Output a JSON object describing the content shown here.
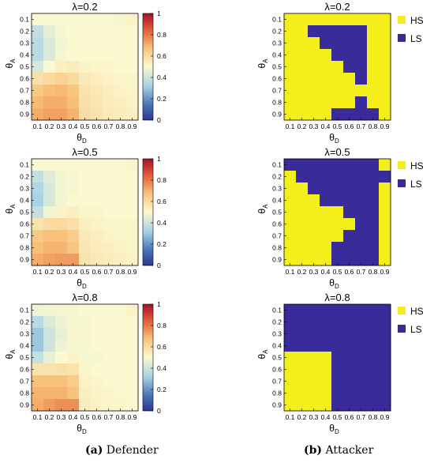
{
  "captions": [
    {
      "letter": "(a)",
      "text": "Defender"
    },
    {
      "letter": "(b)",
      "text": "Attacker"
    }
  ],
  "colorbar": {
    "ticks": [
      "0",
      "0.2",
      "0.4",
      "0.6",
      "0.8",
      "1"
    ],
    "range": [
      0,
      1
    ]
  },
  "legend": {
    "hs": "HS",
    "ls": "LS",
    "hs_color": "#f4ef1a",
    "ls_color": "#3a2b9b"
  },
  "colors": {
    "hs": "#f4ef1a",
    "ls": "#3a2b9b"
  },
  "chart_data": [
    {
      "type": "heatmap",
      "title": "λ=0.2",
      "xlabel": "θD",
      "ylabel": "θA",
      "x": [
        "0.1",
        "0.2",
        "0.3",
        "0.4",
        "0.5",
        "0.6",
        "0.7",
        "0.8",
        "0.9"
      ],
      "y": [
        "0.1",
        "0.2",
        "0.3",
        "0.4",
        "0.5",
        "0.6",
        "0.7",
        "0.8",
        "0.9"
      ],
      "values": [
        [
          0.5,
          0.5,
          0.5,
          0.5,
          0.5,
          0.5,
          0.5,
          0.49,
          0.52
        ],
        [
          0.38,
          0.45,
          0.49,
          0.5,
          0.5,
          0.5,
          0.5,
          0.5,
          0.5
        ],
        [
          0.36,
          0.43,
          0.48,
          0.5,
          0.5,
          0.5,
          0.5,
          0.5,
          0.5
        ],
        [
          0.36,
          0.43,
          0.49,
          0.5,
          0.5,
          0.5,
          0.5,
          0.5,
          0.5
        ],
        [
          0.42,
          0.5,
          0.53,
          0.54,
          0.52,
          0.51,
          0.51,
          0.5,
          0.5
        ],
        [
          0.58,
          0.6,
          0.62,
          0.6,
          0.55,
          0.53,
          0.52,
          0.51,
          0.51
        ],
        [
          0.65,
          0.68,
          0.69,
          0.66,
          0.57,
          0.55,
          0.53,
          0.52,
          0.51
        ],
        [
          0.69,
          0.71,
          0.71,
          0.68,
          0.58,
          0.56,
          0.54,
          0.53,
          0.52
        ],
        [
          0.71,
          0.73,
          0.73,
          0.7,
          0.59,
          0.57,
          0.55,
          0.54,
          0.53
        ]
      ],
      "colorbar": [
        0,
        1
      ]
    },
    {
      "type": "heatmap",
      "title": "λ=0.2",
      "xlabel": "θD",
      "ylabel": "θA",
      "x": [
        "0.1",
        "0.2",
        "0.3",
        "0.4",
        "0.5",
        "0.6",
        "0.7",
        "0.8",
        "0.9"
      ],
      "y": [
        "0.1",
        "0.2",
        "0.3",
        "0.4",
        "0.5",
        "0.6",
        "0.7",
        "0.8",
        "0.9"
      ],
      "legend": [
        "HS",
        "LS"
      ],
      "values": [
        [
          "HS",
          "HS",
          "HS",
          "HS",
          "HS",
          "HS",
          "HS",
          "HS",
          "HS"
        ],
        [
          "HS",
          "HS",
          "LS",
          "LS",
          "LS",
          "LS",
          "LS",
          "HS",
          "HS"
        ],
        [
          "HS",
          "HS",
          "HS",
          "LS",
          "LS",
          "LS",
          "LS",
          "HS",
          "HS"
        ],
        [
          "HS",
          "HS",
          "HS",
          "HS",
          "LS",
          "LS",
          "LS",
          "HS",
          "HS"
        ],
        [
          "HS",
          "HS",
          "HS",
          "HS",
          "HS",
          "LS",
          "LS",
          "HS",
          "HS"
        ],
        [
          "HS",
          "HS",
          "HS",
          "HS",
          "HS",
          "HS",
          "LS",
          "HS",
          "HS"
        ],
        [
          "HS",
          "HS",
          "HS",
          "HS",
          "HS",
          "HS",
          "HS",
          "HS",
          "HS"
        ],
        [
          "HS",
          "HS",
          "HS",
          "HS",
          "HS",
          "HS",
          "LS",
          "HS",
          "HS"
        ],
        [
          "HS",
          "HS",
          "HS",
          "HS",
          "LS",
          "LS",
          "LS",
          "LS",
          "HS"
        ]
      ]
    },
    {
      "type": "heatmap",
      "title": "λ=0.5",
      "xlabel": "θD",
      "ylabel": "θA",
      "x": [
        "0.1",
        "0.2",
        "0.3",
        "0.4",
        "0.5",
        "0.6",
        "0.7",
        "0.8",
        "0.9"
      ],
      "y": [
        "0.1",
        "0.2",
        "0.3",
        "0.4",
        "0.5",
        "0.6",
        "0.7",
        "0.8",
        "0.9"
      ],
      "values": [
        [
          0.5,
          0.5,
          0.5,
          0.5,
          0.5,
          0.5,
          0.5,
          0.5,
          0.51
        ],
        [
          0.38,
          0.44,
          0.48,
          0.49,
          0.5,
          0.5,
          0.5,
          0.5,
          0.5
        ],
        [
          0.34,
          0.42,
          0.48,
          0.49,
          0.5,
          0.5,
          0.5,
          0.5,
          0.5
        ],
        [
          0.32,
          0.42,
          0.48,
          0.5,
          0.5,
          0.5,
          0.5,
          0.5,
          0.5
        ],
        [
          0.38,
          0.48,
          0.52,
          0.53,
          0.51,
          0.51,
          0.5,
          0.5,
          0.5
        ],
        [
          0.57,
          0.59,
          0.6,
          0.58,
          0.53,
          0.52,
          0.51,
          0.51,
          0.51
        ],
        [
          0.65,
          0.67,
          0.67,
          0.64,
          0.55,
          0.53,
          0.52,
          0.51,
          0.51
        ],
        [
          0.68,
          0.7,
          0.7,
          0.66,
          0.56,
          0.54,
          0.53,
          0.52,
          0.51
        ],
        [
          0.71,
          0.73,
          0.74,
          0.74,
          0.57,
          0.55,
          0.54,
          0.53,
          0.52
        ]
      ],
      "colorbar": [
        0,
        1
      ]
    },
    {
      "type": "heatmap",
      "title": "λ=0.5",
      "xlabel": "θD",
      "ylabel": "θA",
      "x": [
        "0.1",
        "0.2",
        "0.3",
        "0.4",
        "0.5",
        "0.6",
        "0.7",
        "0.8",
        "0.9"
      ],
      "y": [
        "0.1",
        "0.2",
        "0.3",
        "0.4",
        "0.5",
        "0.6",
        "0.7",
        "0.8",
        "0.9"
      ],
      "legend": [
        "HS",
        "LS"
      ],
      "values": [
        [
          "LS",
          "LS",
          "LS",
          "LS",
          "LS",
          "LS",
          "LS",
          "LS",
          "HS"
        ],
        [
          "HS",
          "LS",
          "LS",
          "LS",
          "LS",
          "LS",
          "LS",
          "LS",
          "LS"
        ],
        [
          "HS",
          "HS",
          "LS",
          "LS",
          "LS",
          "LS",
          "LS",
          "LS",
          "HS"
        ],
        [
          "HS",
          "HS",
          "HS",
          "LS",
          "LS",
          "LS",
          "LS",
          "LS",
          "HS"
        ],
        [
          "HS",
          "HS",
          "HS",
          "HS",
          "HS",
          "LS",
          "LS",
          "LS",
          "HS"
        ],
        [
          "HS",
          "HS",
          "HS",
          "HS",
          "HS",
          "HS",
          "LS",
          "LS",
          "HS"
        ],
        [
          "HS",
          "HS",
          "HS",
          "HS",
          "HS",
          "LS",
          "LS",
          "LS",
          "HS"
        ],
        [
          "HS",
          "HS",
          "HS",
          "HS",
          "LS",
          "LS",
          "LS",
          "LS",
          "HS"
        ],
        [
          "HS",
          "HS",
          "HS",
          "HS",
          "LS",
          "LS",
          "LS",
          "LS",
          "HS"
        ]
      ]
    },
    {
      "type": "heatmap",
      "title": "λ=0.8",
      "xlabel": "θD",
      "ylabel": "θA",
      "x": [
        "0.1",
        "0.2",
        "0.3",
        "0.4",
        "0.5",
        "0.6",
        "0.7",
        "0.8",
        "0.9"
      ],
      "y": [
        "0.1",
        "0.2",
        "0.3",
        "0.4",
        "0.5",
        "0.6",
        "0.7",
        "0.8",
        "0.9"
      ],
      "values": [
        [
          0.47,
          0.48,
          0.49,
          0.49,
          0.5,
          0.5,
          0.5,
          0.5,
          0.52
        ],
        [
          0.36,
          0.43,
          0.47,
          0.49,
          0.49,
          0.5,
          0.5,
          0.5,
          0.5
        ],
        [
          0.3,
          0.4,
          0.46,
          0.49,
          0.49,
          0.5,
          0.5,
          0.5,
          0.5
        ],
        [
          0.3,
          0.4,
          0.47,
          0.49,
          0.49,
          0.5,
          0.5,
          0.5,
          0.5
        ],
        [
          0.38,
          0.46,
          0.5,
          0.52,
          0.49,
          0.49,
          0.5,
          0.5,
          0.5
        ],
        [
          0.57,
          0.57,
          0.58,
          0.57,
          0.51,
          0.5,
          0.5,
          0.5,
          0.5
        ],
        [
          0.67,
          0.67,
          0.67,
          0.64,
          0.52,
          0.51,
          0.5,
          0.5,
          0.5
        ],
        [
          0.7,
          0.7,
          0.7,
          0.67,
          0.53,
          0.52,
          0.51,
          0.5,
          0.5
        ],
        [
          0.71,
          0.74,
          0.76,
          0.76,
          0.54,
          0.52,
          0.51,
          0.51,
          0.5
        ]
      ],
      "colorbar": [
        0,
        1
      ]
    },
    {
      "type": "heatmap",
      "title": "λ=0.8",
      "xlabel": "θD",
      "ylabel": "θA",
      "x": [
        "0.1",
        "0.2",
        "0.3",
        "0.4",
        "0.5",
        "0.6",
        "0.7",
        "0.8",
        "0.9"
      ],
      "y": [
        "0.1",
        "0.2",
        "0.3",
        "0.4",
        "0.5",
        "0.6",
        "0.7",
        "0.8",
        "0.9"
      ],
      "legend": [
        "HS",
        "LS"
      ],
      "values": [
        [
          "LS",
          "LS",
          "LS",
          "LS",
          "LS",
          "LS",
          "LS",
          "LS",
          "LS"
        ],
        [
          "LS",
          "LS",
          "LS",
          "LS",
          "LS",
          "LS",
          "LS",
          "LS",
          "LS"
        ],
        [
          "LS",
          "LS",
          "LS",
          "LS",
          "LS",
          "LS",
          "LS",
          "LS",
          "LS"
        ],
        [
          "LS",
          "LS",
          "LS",
          "LS",
          "LS",
          "LS",
          "LS",
          "LS",
          "LS"
        ],
        [
          "HS",
          "HS",
          "HS",
          "HS",
          "LS",
          "LS",
          "LS",
          "LS",
          "LS"
        ],
        [
          "HS",
          "HS",
          "HS",
          "HS",
          "LS",
          "LS",
          "LS",
          "LS",
          "LS"
        ],
        [
          "HS",
          "HS",
          "HS",
          "HS",
          "LS",
          "LS",
          "LS",
          "LS",
          "LS"
        ],
        [
          "HS",
          "HS",
          "HS",
          "HS",
          "LS",
          "LS",
          "LS",
          "LS",
          "LS"
        ],
        [
          "HS",
          "HS",
          "HS",
          "HS",
          "LS",
          "LS",
          "LS",
          "LS",
          "LS"
        ]
      ]
    }
  ]
}
